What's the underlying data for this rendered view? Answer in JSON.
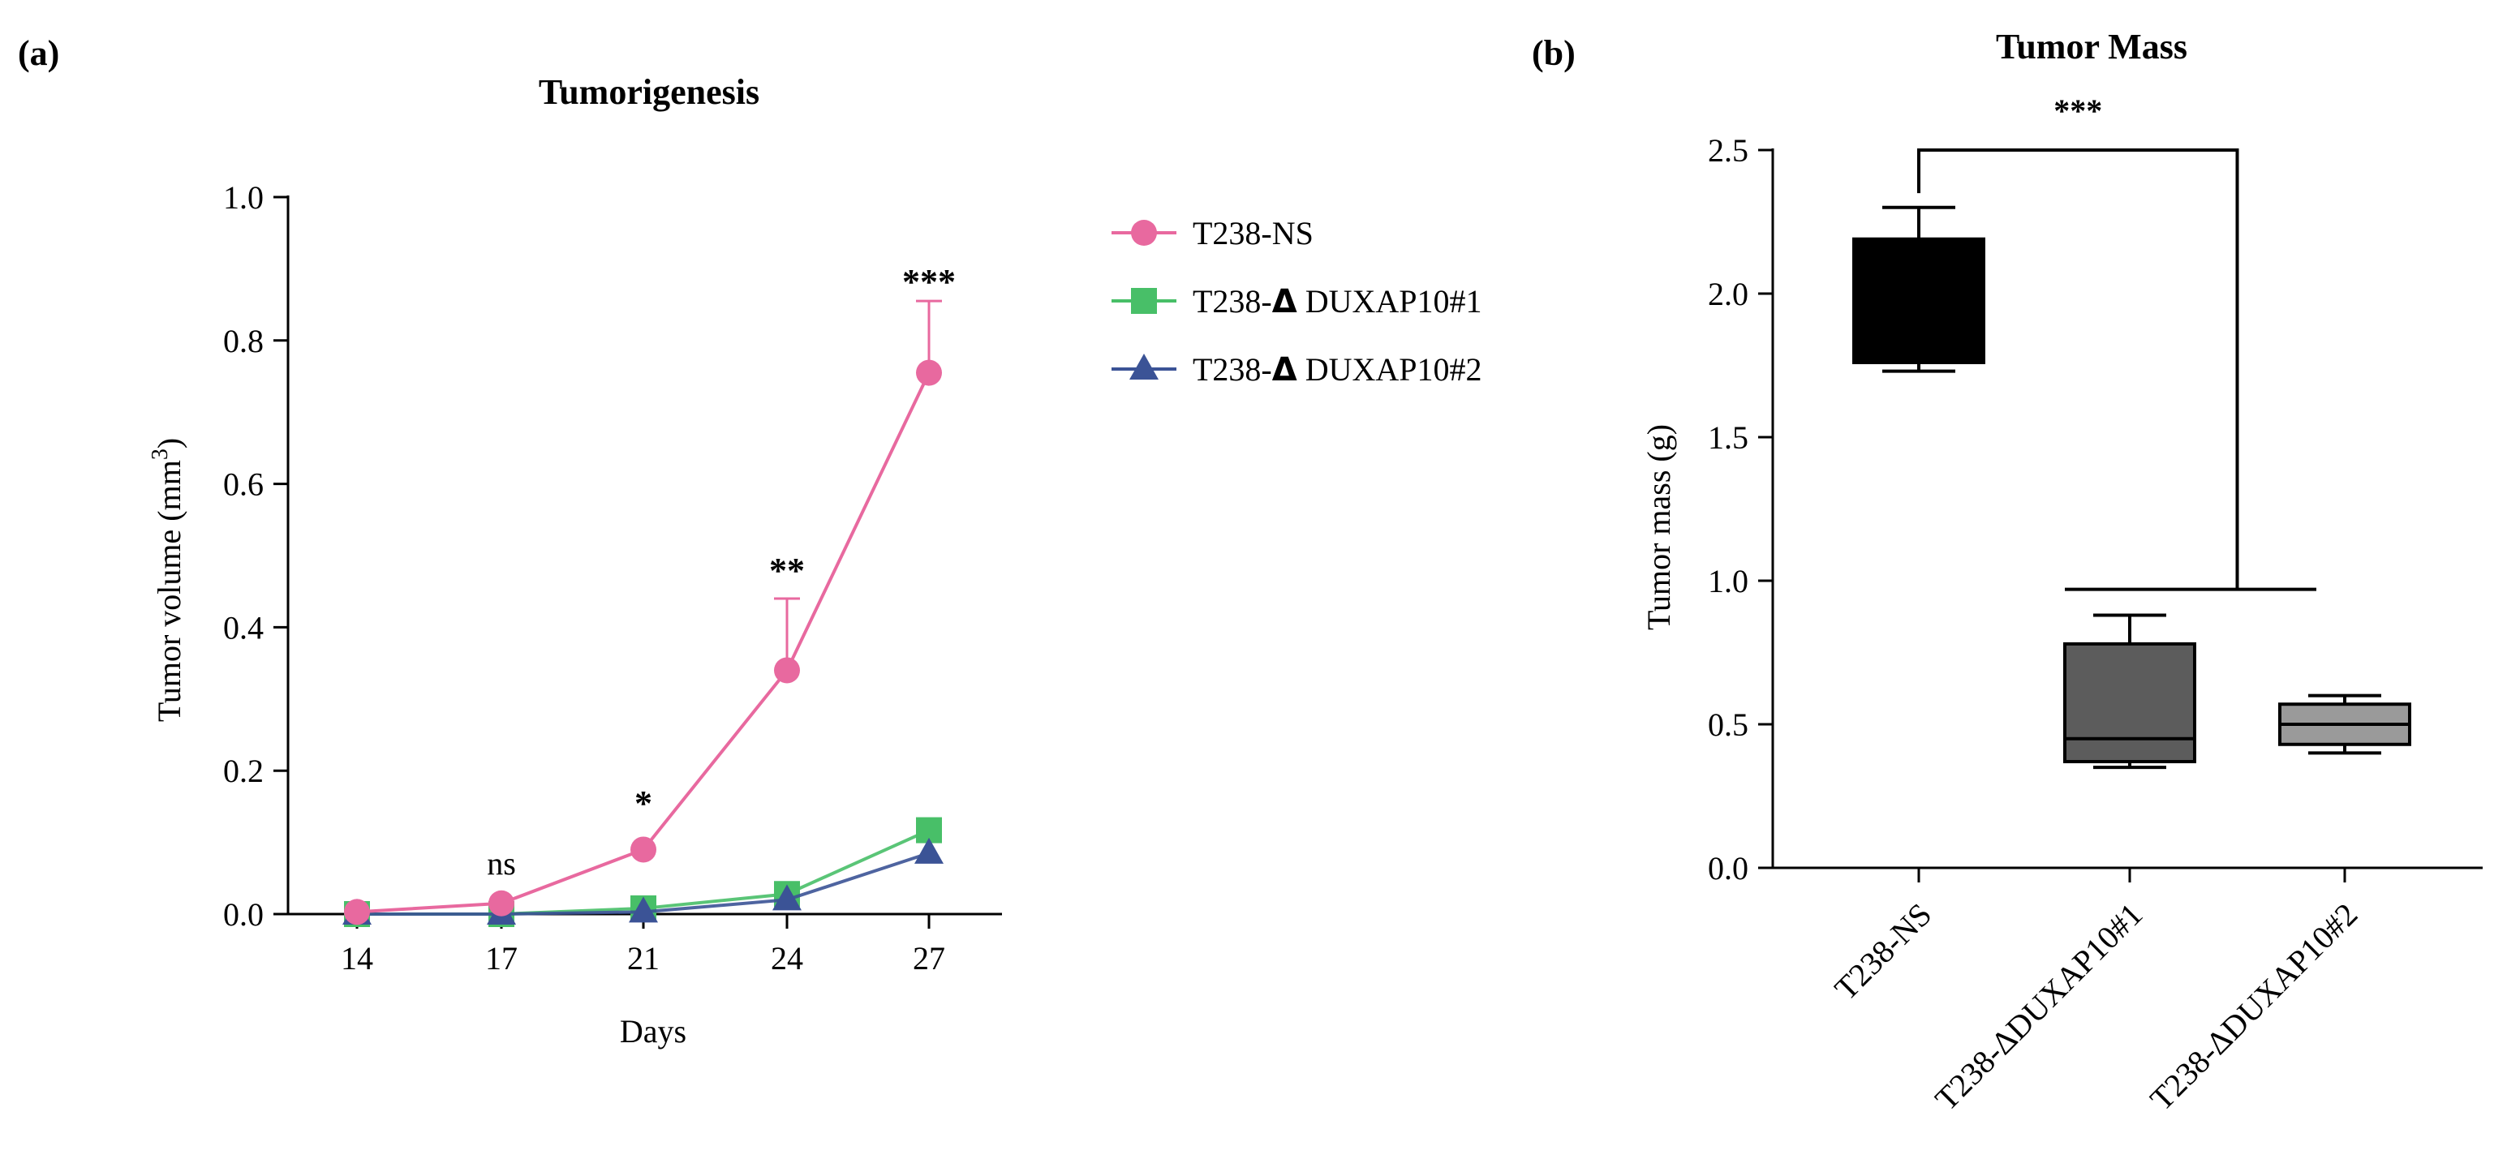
{
  "colors": {
    "ns": "#e8699f",
    "d1": "#48bf68",
    "d2": "#3b5396",
    "axis": "#000000",
    "box1": "#000000",
    "box2": "#5c5c5c",
    "box3": "#9a9a9a"
  },
  "chart_data": [
    {
      "panel_label": "(a)",
      "type": "line",
      "title": "Tumorigenesis",
      "xlabel": "Days",
      "ylabel_main": "Tumor volume (mm",
      "ylabel_sup": "3",
      "ylabel_close": ")",
      "x": [
        14,
        17,
        21,
        24,
        27
      ],
      "x_tick_labels": [
        "14",
        "17",
        "21",
        "24",
        "27"
      ],
      "ylim": [
        0,
        1.0
      ],
      "y_ticks": [
        0.0,
        0.2,
        0.4,
        0.6,
        0.8,
        1.0
      ],
      "y_tick_labels": [
        "0.0",
        "0.2",
        "0.4",
        "0.6",
        "0.8",
        "1.0"
      ],
      "series": [
        {
          "key": "ns",
          "name_prefix": "T238-NS",
          "name_delta": "",
          "name_suffix": "",
          "marker": "circle",
          "color_key": "ns",
          "values": [
            0.003,
            0.015,
            0.09,
            0.34,
            0.755
          ],
          "error_upper": [
            0.003,
            0.015,
            0.09,
            0.44,
            0.855
          ]
        },
        {
          "key": "d1",
          "name_prefix": "T238-",
          "name_delta": "Δ",
          "name_suffix": " DUXAP10#1",
          "marker": "square",
          "color_key": "d1",
          "values": [
            0.0,
            0.0,
            0.008,
            0.028,
            0.117
          ],
          "error_upper": [
            0.0,
            0.0,
            0.008,
            0.028,
            0.117
          ]
        },
        {
          "key": "d2",
          "name_prefix": "T238-",
          "name_delta": "Δ",
          "name_suffix": " DUXAP10#2",
          "marker": "triangle",
          "color_key": "d2",
          "values": [
            0.0,
            0.0,
            0.003,
            0.02,
            0.085
          ],
          "error_upper": [
            0.0,
            0.0,
            0.003,
            0.02,
            0.085
          ]
        }
      ],
      "significance": [
        {
          "x": 17,
          "label": "ns"
        },
        {
          "x": 21,
          "label": "*"
        },
        {
          "x": 24,
          "label": "**"
        },
        {
          "x": 27,
          "label": "***"
        }
      ],
      "legend_position": "right"
    },
    {
      "panel_label": "(b)",
      "type": "box",
      "title": "Tumor Mass",
      "ylabel": "Tumor mass (g)",
      "ylim": [
        0,
        2.5
      ],
      "y_ticks": [
        0.0,
        0.5,
        1.0,
        1.5,
        2.0,
        2.5
      ],
      "y_tick_labels": [
        "0.0",
        "0.5",
        "1.0",
        "1.5",
        "2.0",
        "2.5"
      ],
      "categories": [
        "T238-NS",
        "T238-ΔDUXAP10#1",
        "T238-ΔDUXAP10#2"
      ],
      "boxes": [
        {
          "category": "T238-NS",
          "min": 1.73,
          "q1": 1.76,
          "median": 1.77,
          "q3": 2.19,
          "max": 2.3,
          "fill_key": "box1"
        },
        {
          "category": "T238-ΔDUXAP10#1",
          "min": 0.35,
          "q1": 0.37,
          "median": 0.45,
          "q3": 0.78,
          "max": 0.88,
          "fill_key": "box2"
        },
        {
          "category": "T238-ΔDUXAP10#2",
          "min": 0.4,
          "q1": 0.43,
          "median": 0.5,
          "q3": 0.57,
          "max": 0.6,
          "fill_key": "box3"
        }
      ],
      "significance": {
        "label": "***",
        "bracket_top": 2.5,
        "bracket_low": 0.97
      }
    }
  ]
}
